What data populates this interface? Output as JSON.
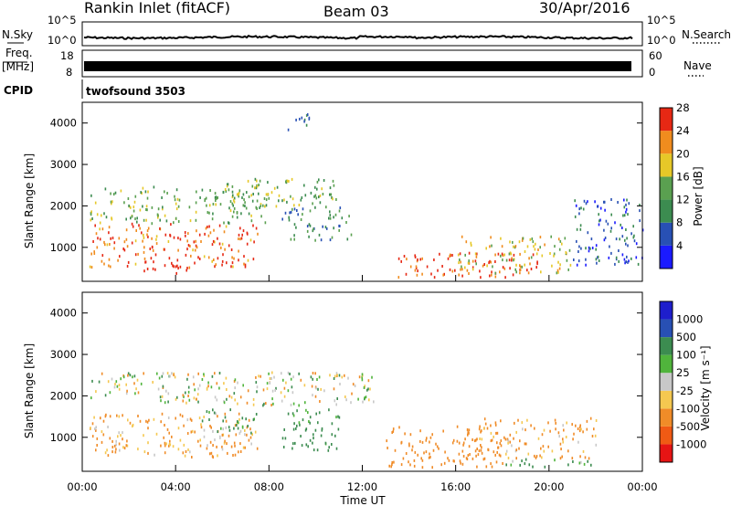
{
  "header": {
    "title": "Rankin Inlet (fitACF)",
    "beam": "Beam 03",
    "date": "30/Apr/2016"
  },
  "strips": {
    "nsky_label": "N.Sky",
    "nsearch_label": "N.Search",
    "freq_label": "Freq.",
    "freq_unit": "[MHz]",
    "nave_label": "Nave",
    "cpid_label": "CPID",
    "cpid_value": "twofsound 3503",
    "noise_left_ticks": [
      "10^5",
      "10^0"
    ],
    "noise_right_ticks": [
      "10^5",
      "10^0"
    ],
    "freq_ticks": [
      "18",
      "8"
    ],
    "nave_ticks": [
      "60",
      "0"
    ]
  },
  "chart_data": [
    {
      "type": "heatmap",
      "panel": "power",
      "ylabel": "Slant Range [km]",
      "xlabel": "",
      "ylim": [
        180,
        4500
      ],
      "yticks": [
        1000,
        2000,
        3000,
        4000
      ],
      "colorbar_label": "Power [dB]",
      "colorbar_ticks": [
        "4",
        "8",
        "12",
        "16",
        "20",
        "24",
        "28"
      ],
      "colors": [
        "#1a1aff",
        "#2850b4",
        "#3c8c50",
        "#5aa050",
        "#e6c828",
        "#f08c1e",
        "#e62814"
      ],
      "regions": [
        {
          "x": [
            0.3,
            8.0
          ],
          "y": [
            1600,
            2500
          ],
          "value": 14
        },
        {
          "x": [
            0.3,
            7.5
          ],
          "y": [
            550,
            1600
          ],
          "value": 24
        },
        {
          "x": [
            2.5,
            5.0
          ],
          "y": [
            400,
            700
          ],
          "value": 28
        },
        {
          "x": [
            6.0,
            11.0
          ],
          "y": [
            2000,
            2700
          ],
          "value": 14
        },
        {
          "x": [
            8.5,
            11.5
          ],
          "y": [
            1200,
            2000
          ],
          "value": 10
        },
        {
          "x": [
            13.5,
            19.5
          ],
          "y": [
            300,
            900
          ],
          "value": 26
        },
        {
          "x": [
            16.0,
            21.0
          ],
          "y": [
            400,
            1300
          ],
          "value": 18
        },
        {
          "x": [
            8.8,
            9.8
          ],
          "y": [
            3800,
            4300
          ],
          "value": 8
        },
        {
          "x": [
            21.0,
            24.0
          ],
          "y": [
            600,
            2200
          ],
          "value": 6
        }
      ]
    },
    {
      "type": "heatmap",
      "panel": "velocity",
      "ylabel": "Slant Range [km]",
      "xlabel": "Time UT",
      "ylim": [
        180,
        4500
      ],
      "yticks": [
        1000,
        2000,
        3000,
        4000
      ],
      "colorbar_label": "Velocity [m s⁻¹]",
      "colorbar_ticks": [
        "-1000",
        "-500",
        "-100",
        "-25",
        "25",
        "100",
        "500",
        "1000"
      ],
      "colors": [
        "#e61414",
        "#f05a14",
        "#f08c28",
        "#f5c850",
        "#c8c8c8",
        "#50b43c",
        "#3c8c50",
        "#2850b4",
        "#1e1ecc"
      ],
      "regions": [
        {
          "x": [
            0.3,
            12.5
          ],
          "y": [
            1800,
            2600
          ],
          "value": 0
        },
        {
          "x": [
            0.3,
            7.5
          ],
          "y": [
            550,
            1600
          ],
          "value": -150
        },
        {
          "x": [
            5.0,
            7.5
          ],
          "y": [
            1100,
            1700
          ],
          "value": 150
        },
        {
          "x": [
            8.5,
            11.0
          ],
          "y": [
            700,
            1700
          ],
          "value": 200
        },
        {
          "x": [
            13.0,
            18.0
          ],
          "y": [
            300,
            1300
          ],
          "value": -250
        },
        {
          "x": [
            17.0,
            22.0
          ],
          "y": [
            500,
            1500
          ],
          "value": -150
        },
        {
          "x": [
            18.0,
            22.0
          ],
          "y": [
            300,
            500
          ],
          "value": 150
        }
      ]
    }
  ],
  "x_axis": {
    "ticks": [
      "00:00",
      "04:00",
      "08:00",
      "12:00",
      "16:00",
      "20:00",
      "00:00"
    ],
    "label": "Time UT"
  }
}
